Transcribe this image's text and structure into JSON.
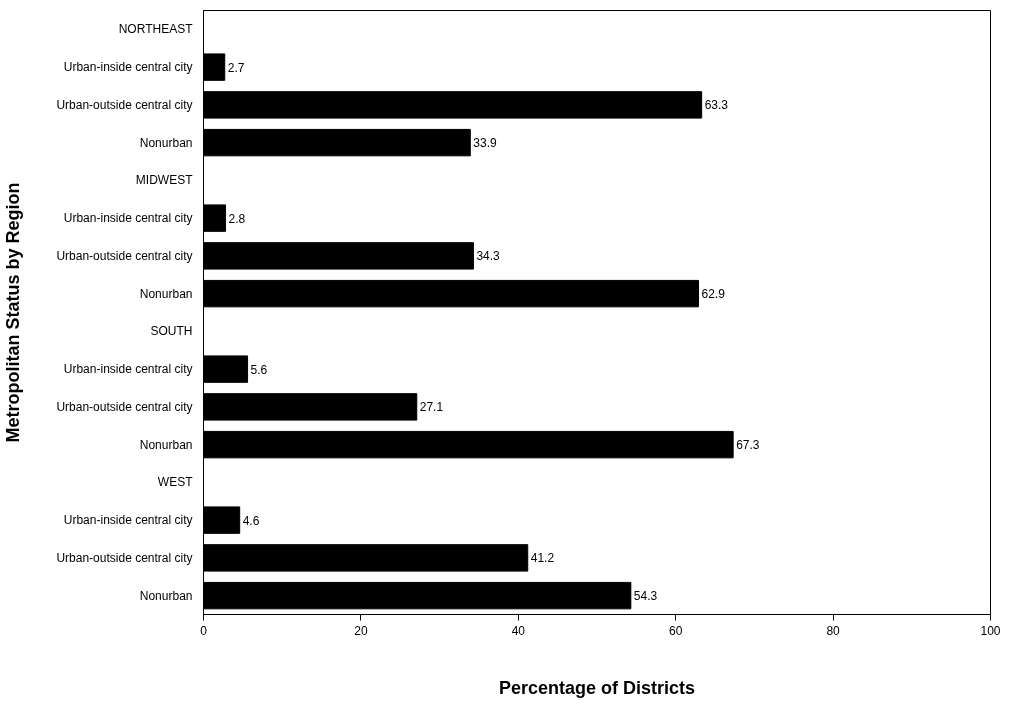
{
  "chart_data": {
    "type": "bar",
    "orientation": "horizontal",
    "xlabel": "Percentage of Districts",
    "ylabel": "Metropolitan Status by Region",
    "categories": [
      "NORTHEAST",
      "Urban-inside central city",
      "Urban-outside central city",
      "Nonurban",
      "MIDWEST",
      "Urban-inside central city",
      "Urban-outside central city",
      "Nonurban",
      "SOUTH",
      "Urban-inside central city",
      "Urban-outside central city",
      "Nonurban",
      "WEST",
      "Urban-inside central city",
      "Urban-outside central city",
      "Nonurban"
    ],
    "values": [
      null,
      2.7,
      63.3,
      33.9,
      null,
      2.8,
      34.3,
      62.9,
      null,
      5.6,
      27.1,
      67.3,
      null,
      4.6,
      41.2,
      54.3
    ],
    "color": "#000000",
    "xlim": [
      0,
      100
    ],
    "xticks": [
      0,
      20,
      40,
      60,
      80,
      100
    ],
    "data_labels": true,
    "grid": false
  }
}
